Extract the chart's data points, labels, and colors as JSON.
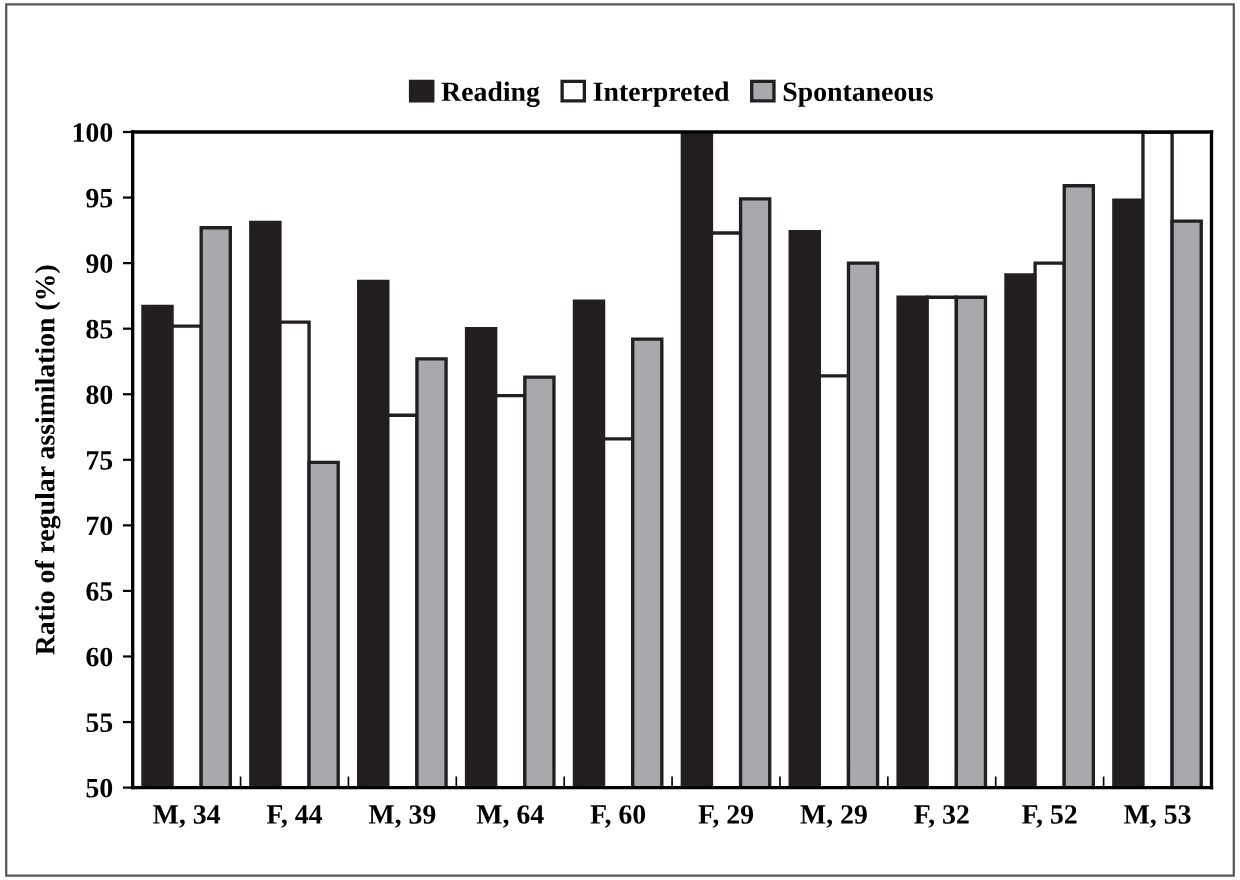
{
  "chart_data": {
    "type": "bar",
    "ylabel": "Ratio of regular assimilation (%)",
    "categories": [
      "M, 34",
      "F, 44",
      "M, 39",
      "M, 64",
      "F, 60",
      "F, 29",
      "M, 29",
      "F, 32",
      "F, 52",
      "M, 53"
    ],
    "series": [
      {
        "name": "Reading",
        "color": "#231f20",
        "values": [
          86.7,
          93.1,
          88.6,
          85.0,
          87.1,
          100,
          92.4,
          87.4,
          89.1,
          94.8
        ]
      },
      {
        "name": "Interpreted",
        "color": "#ffffff",
        "values": [
          85.2,
          85.5,
          78.4,
          79.9,
          76.6,
          92.3,
          81.4,
          87.4,
          90.0,
          100
        ]
      },
      {
        "name": "Spontaneous",
        "color": "#a7a9ac",
        "values": [
          92.7,
          74.8,
          82.7,
          81.3,
          84.2,
          94.9,
          90.0,
          87.4,
          95.9,
          93.2
        ]
      }
    ],
    "ylim": [
      50,
      100
    ],
    "yticks": [
      50,
      55,
      60,
      65,
      70,
      75,
      80,
      85,
      90,
      95,
      100
    ],
    "grid": false,
    "legend": "top"
  }
}
